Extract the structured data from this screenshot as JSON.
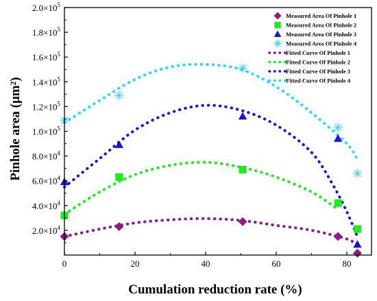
{
  "chart_data": {
    "type": "scatter",
    "xlabel": "Cumulation reduction rate (%)",
    "ylabel": "Pinhole area (μm²)",
    "xlim": [
      0,
      87
    ],
    "ylim": [
      0,
      200000
    ],
    "x_ticks": [
      0,
      20,
      40,
      60,
      80
    ],
    "x_tick_labels": [
      "0",
      "20",
      "40",
      "60",
      "80"
    ],
    "y_ticks": [
      20000,
      40000,
      60000,
      80000,
      100000,
      120000,
      140000,
      160000,
      180000,
      200000
    ],
    "y_tick_labels": [
      {
        "mant": "2.0×10",
        "exp": "4"
      },
      {
        "mant": "4.0×10",
        "exp": "4"
      },
      {
        "mant": "6.0×10",
        "exp": "4"
      },
      {
        "mant": "8.0×10",
        "exp": "4"
      },
      {
        "mant": "1.0×10",
        "exp": "5"
      },
      {
        "mant": "1.2×10",
        "exp": "5"
      },
      {
        "mant": "1.4×10",
        "exp": "5"
      },
      {
        "mant": "1.6×10",
        "exp": "5"
      },
      {
        "mant": "1.8×10",
        "exp": "5"
      },
      {
        "mant": "2.0×10",
        "exp": "5"
      }
    ],
    "legend_position": "top-right",
    "series": [
      {
        "name": "Measured Area Of Pinhole 1",
        "kind": "points",
        "marker": "diamond",
        "color": "#8B1A8B",
        "x": [
          0,
          15.5,
          50.5,
          77.5,
          83
        ],
        "y": [
          15000,
          23000,
          27000,
          15000,
          1500
        ]
      },
      {
        "name": "Measured Area Of Pinhole 2",
        "kind": "points",
        "marker": "square",
        "color": "#22E822",
        "x": [
          0,
          15.5,
          50.5,
          77.5,
          83
        ],
        "y": [
          32000,
          63000,
          69000,
          42000,
          21000
        ]
      },
      {
        "name": "Measured Area Of Pinhole 3",
        "kind": "points",
        "marker": "triangle",
        "color": "#1515D8",
        "x": [
          0,
          15.5,
          50.5,
          77.5,
          83
        ],
        "y": [
          59000,
          89000,
          112000,
          94000,
          8500
        ]
      },
      {
        "name": "Measured Area Of Pinhole 4",
        "kind": "points",
        "marker": "asterisk",
        "color": "#33D6F2",
        "x": [
          0,
          15.5,
          50.5,
          77.5,
          83
        ],
        "y": [
          109000,
          129000,
          151000,
          103000,
          66000
        ]
      },
      {
        "name": "Fitted Curve Of Pinhole 1",
        "kind": "fit",
        "color": "#8B1A8B",
        "x": [
          0,
          10,
          20,
          30,
          40,
          50,
          60,
          70,
          80,
          83
        ],
        "y": [
          15000,
          21000,
          26000,
          28500,
          29500,
          28000,
          24000,
          20000,
          13000,
          8000
        ]
      },
      {
        "name": "Fitted Curve Of Pinhole 2",
        "kind": "fit",
        "color": "#22E822",
        "x": [
          0,
          10,
          20,
          30,
          40,
          50,
          60,
          70,
          77
        ],
        "y": [
          33000,
          51000,
          65000,
          72500,
          75000,
          71000,
          63000,
          51000,
          38000
        ]
      },
      {
        "name": "Fitted Curve Of Pinhole 3",
        "kind": "fit",
        "color": "#1515D8",
        "x": [
          0,
          10,
          20,
          30,
          40,
          50,
          60,
          70,
          76,
          80,
          83
        ],
        "y": [
          55000,
          78000,
          101000,
          115000,
          121000,
          117000,
          105000,
          83000,
          57000,
          35000,
          15000
        ]
      },
      {
        "name": "Fitted Curve Of Pinhole 4",
        "kind": "fit",
        "color": "#33D6F2",
        "x": [
          0,
          10,
          20,
          30,
          40,
          50,
          60,
          70,
          80,
          83
        ],
        "y": [
          107000,
          125000,
          142000,
          152000,
          154000,
          150000,
          136000,
          115000,
          90000,
          77000
        ]
      }
    ]
  }
}
